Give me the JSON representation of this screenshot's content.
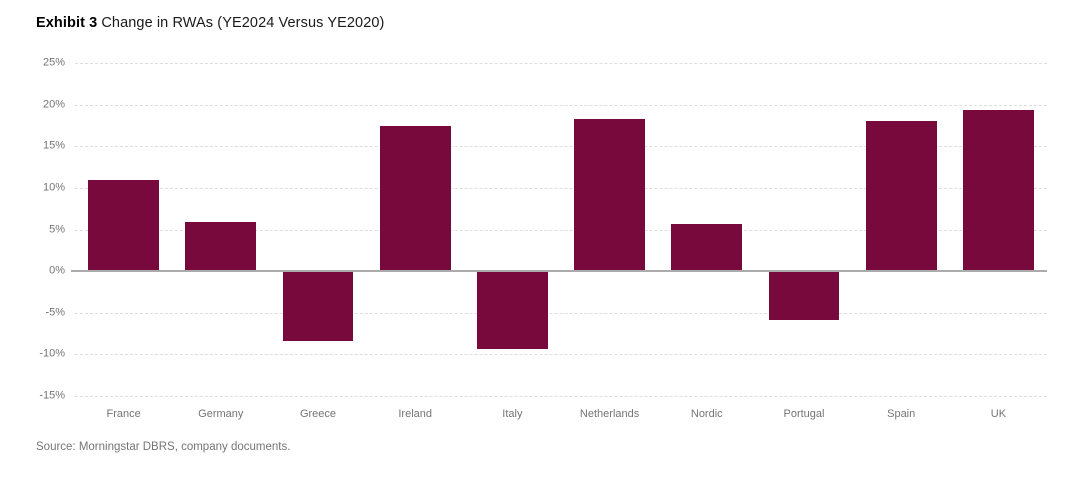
{
  "title": {
    "prefix": "Exhibit 3",
    "rest": "Change in RWAs (YE2024 Versus YE2020)"
  },
  "source": "Source: Morningstar DBRS, company documents.",
  "colors": {
    "bar": "#77093C",
    "gridline": "#dedede",
    "zero_line": "#ababab",
    "axis_text": "#757575",
    "title_text": "#000000"
  },
  "chart_data": {
    "type": "bar",
    "title": "Exhibit 3 Change in RWAs (YE2024 Versus YE2020)",
    "categories": [
      "France",
      "Germany",
      "Greece",
      "Ireland",
      "Italy",
      "Netherlands",
      "Nordic",
      "Portugal",
      "Spain",
      "UK"
    ],
    "values": [
      10.9,
      5.9,
      -8.4,
      17.4,
      -9.4,
      18.3,
      5.7,
      -5.9,
      18.0,
      19.4
    ],
    "xlabel": "",
    "ylabel": "",
    "ylim": [
      -15,
      25
    ],
    "ytick_step": 5,
    "ytick_suffix": "%",
    "yticks": [
      "25%",
      "20%",
      "15%",
      "10%",
      "5%",
      "0%",
      "-5%",
      "-10%",
      "-15%"
    ],
    "grid": "horizontal-dashed",
    "zero_baseline": true,
    "legend": "none",
    "bar_width_fraction": 0.73
  }
}
